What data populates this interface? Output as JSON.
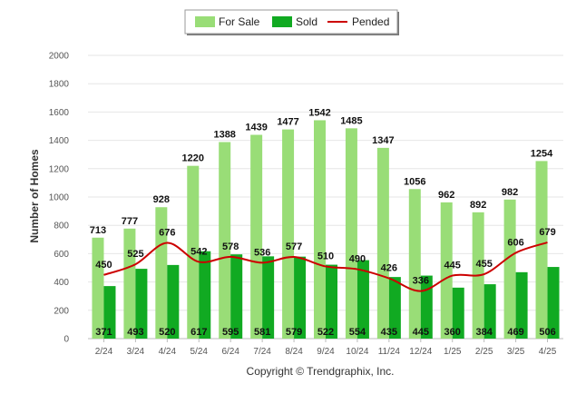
{
  "chart_data": {
    "type": "bar",
    "categories": [
      "2/24",
      "3/24",
      "4/24",
      "5/24",
      "6/24",
      "7/24",
      "8/24",
      "9/24",
      "10/24",
      "11/24",
      "12/24",
      "1/25",
      "2/25",
      "3/25",
      "4/25"
    ],
    "series": [
      {
        "name": "For Sale",
        "type": "bar",
        "color": "#99dd77",
        "values": [
          713,
          777,
          928,
          1220,
          1388,
          1439,
          1477,
          1542,
          1485,
          1347,
          1056,
          962,
          892,
          982,
          1254
        ]
      },
      {
        "name": "Sold",
        "type": "bar",
        "color": "#11aa22",
        "values": [
          371,
          493,
          520,
          617,
          595,
          581,
          579,
          522,
          554,
          435,
          445,
          360,
          384,
          469,
          506
        ]
      },
      {
        "name": "Pended",
        "type": "line",
        "color": "#cc0000",
        "values": [
          450,
          525,
          676,
          542,
          578,
          536,
          577,
          510,
          490,
          426,
          336,
          445,
          455,
          606,
          679
        ]
      }
    ],
    "ylabel": "Number of Homes",
    "xlabel": "",
    "ylim": [
      0,
      2000
    ],
    "yticks": [
      0,
      200,
      400,
      600,
      800,
      1000,
      1200,
      1400,
      1600,
      1800,
      2000
    ],
    "grid": true,
    "legend": "top-center",
    "footer": "Copyright © Trendgraphix, Inc."
  }
}
